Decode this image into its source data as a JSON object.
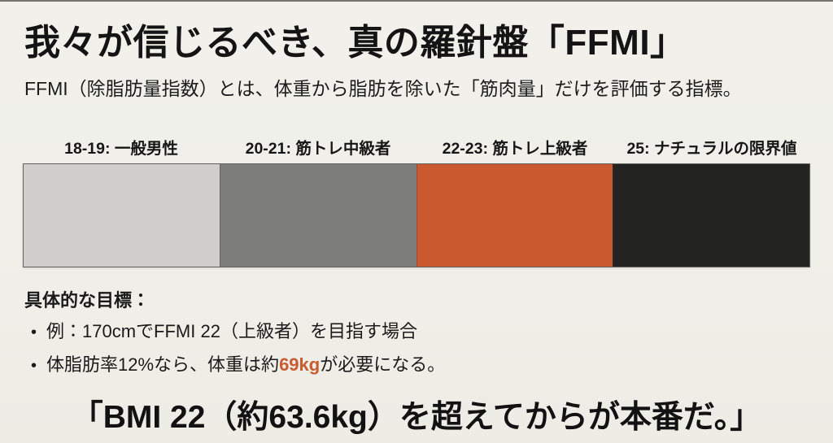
{
  "title": "我々が信じるべき、真の羅針盤「FFMI」",
  "subtitle": "FFMI（除脂肪量指数）とは、体重から脂肪を除いた「筋肉量」だけを評価する指標。",
  "scale": {
    "segments": [
      {
        "label": "18-19: 一般男性",
        "range": "18-19",
        "meaning": "一般男性",
        "color": "#d0cfcd"
      },
      {
        "label": "20-21: 筋トレ中級者",
        "range": "20-21",
        "meaning": "筋トレ中級者",
        "color": "#7d7d7b"
      },
      {
        "label": "22-23: 筋トレ上級者",
        "range": "22-23",
        "meaning": "筋トレ上級者",
        "color": "#cc5a31"
      },
      {
        "label": "25: ナチュラルの限界値",
        "range": "25",
        "meaning": "ナチュラルの限界値",
        "color": "#232322"
      }
    ],
    "border_color": "#63635d"
  },
  "goals": {
    "heading": "具体的な目標：",
    "bullet_char": "•",
    "bullets": [
      {
        "pre": "例：170cmでFFMI 22（上級者）を目指す場合",
        "highlight": "",
        "post": ""
      },
      {
        "pre": "体脂肪率12%なら、体重は約",
        "highlight": "69kg",
        "post": "が必要になる。"
      }
    ]
  },
  "quote": "「BMI 22（約63.6kg）を超えてからが本番だ。」",
  "colors": {
    "background": "#f0efe9",
    "text": "#191919",
    "accent_orange": "#cc5a31"
  }
}
